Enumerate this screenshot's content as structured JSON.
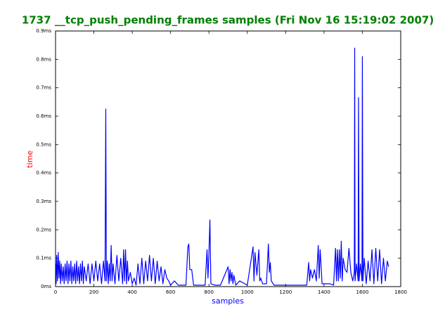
{
  "chart_data": {
    "type": "line",
    "title": "1737 __tcp_push_pending_frames samples (Fri Nov 16 15:19:02 2007)",
    "xlabel": "samples",
    "ylabel": "time",
    "color": "#0000ff",
    "xlim": [
      0,
      1800
    ],
    "xticks": [
      0,
      200,
      400,
      600,
      800,
      1000,
      1200,
      1400,
      1600,
      1800
    ],
    "ylim": [
      0,
      0.9
    ],
    "yticks": [
      {
        "value": 0,
        "label": "0ms"
      },
      {
        "value": 0.1,
        "label": "0.1ms"
      },
      {
        "value": 0.2,
        "label": "0.2ms"
      },
      {
        "value": 0.3,
        "label": "0.3ms"
      },
      {
        "value": 0.4,
        "label": "0.4ms"
      },
      {
        "value": 0.5,
        "label": "0.5ms"
      },
      {
        "value": 0.6,
        "label": "0.6ms"
      },
      {
        "value": 0.7,
        "label": "0.7ms"
      },
      {
        "value": 0.8,
        "label": "0.8ms"
      },
      {
        "value": 0.9,
        "label": "0.9ms"
      }
    ],
    "grid": false,
    "x": [
      0,
      3,
      6,
      10,
      14,
      18,
      22,
      26,
      30,
      35,
      40,
      45,
      50,
      55,
      60,
      65,
      70,
      75,
      80,
      85,
      90,
      95,
      100,
      105,
      110,
      115,
      120,
      125,
      130,
      135,
      140,
      145,
      150,
      160,
      170,
      180,
      190,
      200,
      210,
      220,
      230,
      240,
      250,
      258,
      262,
      265,
      270,
      275,
      280,
      285,
      290,
      295,
      300,
      310,
      320,
      330,
      340,
      350,
      355,
      360,
      365,
      370,
      375,
      380,
      390,
      400,
      410,
      420,
      430,
      440,
      450,
      460,
      470,
      480,
      490,
      500,
      510,
      520,
      530,
      540,
      550,
      560,
      570,
      580,
      590,
      600,
      620,
      640,
      660,
      680,
      690,
      695,
      700,
      710,
      720,
      740,
      760,
      780,
      790,
      795,
      800,
      805,
      810,
      830,
      860,
      900,
      905,
      910,
      915,
      920,
      925,
      930,
      940,
      960,
      1000,
      1030,
      1035,
      1040,
      1050,
      1060,
      1065,
      1070,
      1080,
      1100,
      1110,
      1115,
      1120,
      1125,
      1140,
      1200,
      1250,
      1310,
      1320,
      1325,
      1330,
      1340,
      1350,
      1360,
      1370,
      1375,
      1380,
      1390,
      1400,
      1430,
      1450,
      1460,
      1465,
      1470,
      1475,
      1480,
      1485,
      1490,
      1495,
      1500,
      1510,
      1520,
      1530,
      1540,
      1550,
      1558,
      1560,
      1562,
      1570,
      1578,
      1580,
      1583,
      1590,
      1598,
      1600,
      1603,
      1610,
      1620,
      1630,
      1640,
      1650,
      1660,
      1670,
      1680,
      1690,
      1700,
      1710,
      1720,
      1730,
      1737
    ],
    "values": [
      0.08,
      0.01,
      0.11,
      0.02,
      0.12,
      0.03,
      0.09,
      0.01,
      0.08,
      0.02,
      0.07,
      0.01,
      0.08,
      0.02,
      0.09,
      0.01,
      0.08,
      0.02,
      0.09,
      0.01,
      0.07,
      0.02,
      0.08,
      0.01,
      0.09,
      0.02,
      0.07,
      0.01,
      0.08,
      0.02,
      0.09,
      0.01,
      0.07,
      0.02,
      0.08,
      0.01,
      0.08,
      0.02,
      0.09,
      0.02,
      0.08,
      0.01,
      0.09,
      0.02,
      0.625,
      0.02,
      0.09,
      0.01,
      0.08,
      0.02,
      0.145,
      0.02,
      0.08,
      0.01,
      0.11,
      0.02,
      0.1,
      0.01,
      0.13,
      0.02,
      0.13,
      0.01,
      0.09,
      0.02,
      0.05,
      0.01,
      0.03,
      0.005,
      0.08,
      0.01,
      0.1,
      0.01,
      0.09,
      0.02,
      0.11,
      0.02,
      0.1,
      0.01,
      0.09,
      0.02,
      0.07,
      0.01,
      0.06,
      0.03,
      0.02,
      0.005,
      0.02,
      0.005,
      0.005,
      0.005,
      0.14,
      0.15,
      0.06,
      0.06,
      0.005,
      0.005,
      0.005,
      0.005,
      0.13,
      0.03,
      0.12,
      0.235,
      0.01,
      0.005,
      0.005,
      0.07,
      0.01,
      0.06,
      0.02,
      0.05,
      0.01,
      0.04,
      0.005,
      0.02,
      0.005,
      0.14,
      0.02,
      0.12,
      0.04,
      0.13,
      0.02,
      0.03,
      0.01,
      0.01,
      0.15,
      0.05,
      0.085,
      0.02,
      0.005,
      0.005,
      0.005,
      0.005,
      0.085,
      0.02,
      0.06,
      0.03,
      0.06,
      0.02,
      0.145,
      0.03,
      0.13,
      0.01,
      0.01,
      0.01,
      0.005,
      0.135,
      0.02,
      0.13,
      0.02,
      0.13,
      0.03,
      0.16,
      0.02,
      0.1,
      0.06,
      0.05,
      0.135,
      0.05,
      0.02,
      0.05,
      0.84,
      0.02,
      0.08,
      0.02,
      0.665,
      0.02,
      0.08,
      0.02,
      0.81,
      0.02,
      0.1,
      0.01,
      0.09,
      0.02,
      0.13,
      0.01,
      0.135,
      0.02,
      0.13,
      0.01,
      0.1,
      0.02,
      0.09,
      0.07
    ]
  }
}
